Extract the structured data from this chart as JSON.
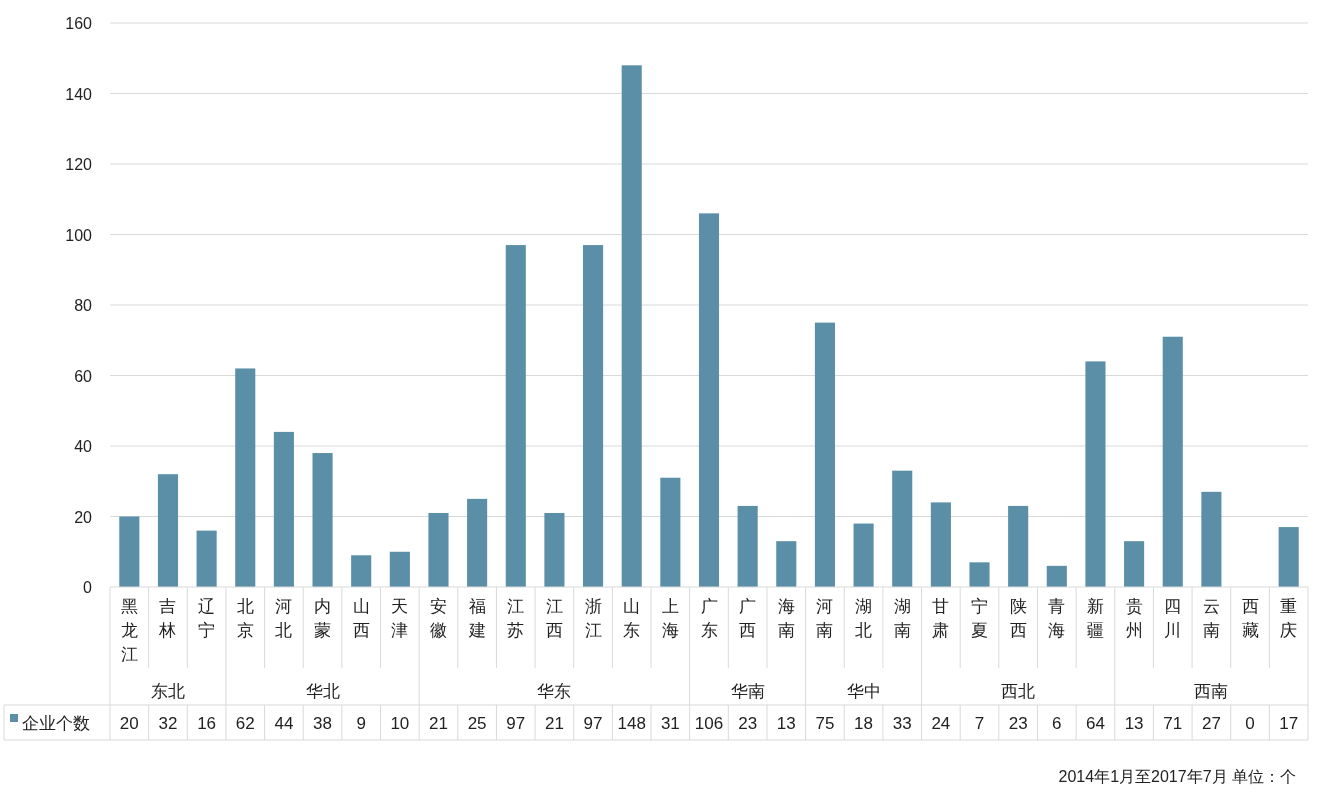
{
  "chart_data": {
    "type": "bar",
    "categories": [
      "黑龙江",
      "吉林",
      "辽宁",
      "北京",
      "河北",
      "内蒙",
      "山西",
      "天津",
      "安徽",
      "福建",
      "江苏",
      "江西",
      "浙江",
      "山东",
      "上海",
      "广东",
      "广西",
      "海南",
      "河南",
      "湖北",
      "湖南",
      "甘肃",
      "宁夏",
      "陕西",
      "青海",
      "新疆",
      "贵州",
      "四川",
      "云南",
      "西藏",
      "重庆"
    ],
    "series": [
      {
        "name": "企业个数",
        "color": "#5b8fa8",
        "values": [
          20,
          32,
          16,
          62,
          44,
          38,
          9,
          10,
          21,
          25,
          97,
          21,
          97,
          148,
          31,
          106,
          23,
          13,
          75,
          18,
          33,
          24,
          7,
          23,
          6,
          64,
          13,
          71,
          27,
          0,
          17
        ]
      }
    ],
    "ylim": [
      0,
      160
    ],
    "yticks": [
      0,
      20,
      40,
      60,
      80,
      100,
      120,
      140,
      160
    ],
    "grid": "y",
    "legend": "bottom",
    "data_labels": true,
    "annotations": [
      "东北",
      "华北",
      "华东",
      "华南",
      "华中",
      "西北",
      "西南",
      "2014年1月至2017年7月  单位：个"
    ]
  }
}
